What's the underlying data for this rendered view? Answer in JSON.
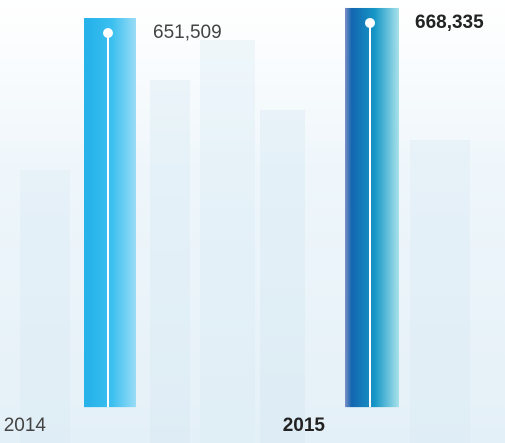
{
  "chart_data": {
    "type": "bar",
    "categories": [
      "2014",
      "2015"
    ],
    "values": [
      651509,
      668335
    ],
    "value_labels": [
      "651,509",
      "668,335"
    ],
    "colors": [
      "#27b3ea",
      "#1466b0"
    ],
    "ylim": [
      -50000,
      680000
    ]
  }
}
